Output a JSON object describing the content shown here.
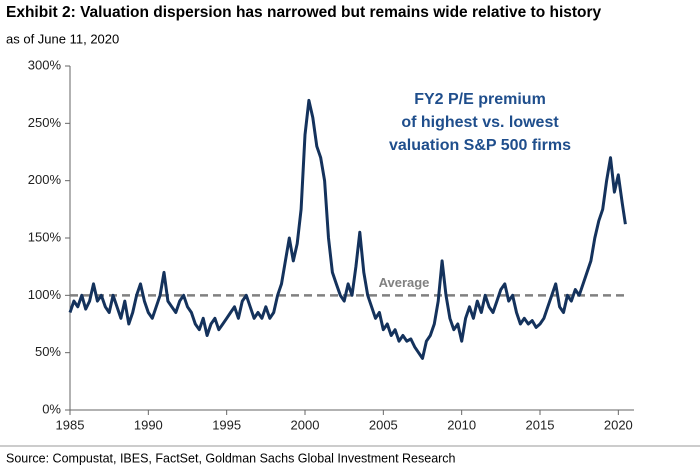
{
  "chart_data": {
    "type": "line",
    "title": "Exhibit 2: Valuation dispersion has narrowed but remains wide relative to history",
    "subtitle": "as of June 11, 2020",
    "source": "Source: Compustat, IBES, FactSet, Goldman Sachs Global Investment Research",
    "annotation": [
      "FY2 P/E premium",
      "of highest vs. lowest",
      "valuation S&P 500 firms"
    ],
    "reference_line": {
      "value": 100,
      "label": "Average",
      "color": "#808080"
    },
    "xlim": [
      1985,
      2021
    ],
    "xticks": [
      1985,
      1990,
      1995,
      2000,
      2005,
      2010,
      2015,
      2020
    ],
    "ylim": [
      0,
      300
    ],
    "yticks": [
      {
        "value": 0,
        "label": "0%"
      },
      {
        "value": 50,
        "label": "50%"
      },
      {
        "value": 100,
        "label": "100%"
      },
      {
        "value": 150,
        "label": "150%"
      },
      {
        "value": 200,
        "label": "200%"
      },
      {
        "value": 250,
        "label": "250%"
      },
      {
        "value": 300,
        "label": "300%"
      }
    ],
    "x": [
      1985,
      1985.25,
      1985.5,
      1985.75,
      1986,
      1986.25,
      1986.5,
      1986.75,
      1987,
      1987.25,
      1987.5,
      1987.75,
      1988,
      1988.25,
      1988.5,
      1988.75,
      1989,
      1989.25,
      1989.5,
      1989.75,
      1990,
      1990.25,
      1990.5,
      1990.75,
      1991,
      1991.25,
      1991.5,
      1991.75,
      1992,
      1992.25,
      1992.5,
      1992.75,
      1993,
      1993.25,
      1993.5,
      1993.75,
      1994,
      1994.25,
      1994.5,
      1994.75,
      1995,
      1995.25,
      1995.5,
      1995.75,
      1996,
      1996.25,
      1996.5,
      1996.75,
      1997,
      1997.25,
      1997.5,
      1997.75,
      1998,
      1998.25,
      1998.5,
      1998.75,
      1999,
      1999.25,
      1999.5,
      1999.75,
      2000,
      2000.25,
      2000.5,
      2000.75,
      2001,
      2001.25,
      2001.5,
      2001.75,
      2002,
      2002.25,
      2002.5,
      2002.75,
      2003,
      2003.25,
      2003.5,
      2003.75,
      2004,
      2004.25,
      2004.5,
      2004.75,
      2005,
      2005.25,
      2005.5,
      2005.75,
      2006,
      2006.25,
      2006.5,
      2006.75,
      2007,
      2007.25,
      2007.5,
      2007.75,
      2008,
      2008.25,
      2008.5,
      2008.75,
      2009,
      2009.25,
      2009.5,
      2009.75,
      2010,
      2010.25,
      2010.5,
      2010.75,
      2011,
      2011.25,
      2011.5,
      2011.75,
      2012,
      2012.25,
      2012.5,
      2012.75,
      2013,
      2013.25,
      2013.5,
      2013.75,
      2014,
      2014.25,
      2014.5,
      2014.75,
      2015,
      2015.25,
      2015.5,
      2015.75,
      2016,
      2016.25,
      2016.5,
      2016.75,
      2017,
      2017.25,
      2017.5,
      2017.75,
      2018,
      2018.25,
      2018.5,
      2018.75,
      2019,
      2019.25,
      2019.5,
      2019.75,
      2020,
      2020.25,
      2020.45
    ],
    "series": [
      {
        "color": "#14325c",
        "values": [
          85,
          95,
          90,
          100,
          88,
          95,
          110,
          95,
          100,
          90,
          85,
          100,
          90,
          80,
          95,
          75,
          85,
          100,
          110,
          95,
          85,
          80,
          90,
          100,
          120,
          95,
          90,
          85,
          95,
          100,
          90,
          85,
          75,
          70,
          80,
          65,
          75,
          80,
          70,
          75,
          80,
          85,
          90,
          80,
          95,
          100,
          90,
          80,
          85,
          80,
          90,
          80,
          85,
          100,
          110,
          130,
          150,
          130,
          145,
          175,
          240,
          270,
          255,
          230,
          220,
          200,
          150,
          120,
          110,
          100,
          95,
          110,
          100,
          125,
          155,
          120,
          100,
          90,
          80,
          85,
          70,
          75,
          65,
          70,
          60,
          65,
          60,
          62,
          55,
          50,
          45,
          60,
          65,
          75,
          95,
          130,
          100,
          80,
          70,
          75,
          60,
          80,
          90,
          80,
          95,
          85,
          100,
          90,
          85,
          95,
          105,
          110,
          95,
          100,
          85,
          75,
          80,
          75,
          78,
          72,
          75,
          80,
          90,
          100,
          110,
          90,
          85,
          100,
          95,
          105,
          100,
          110,
          120,
          130,
          150,
          165,
          175,
          200,
          220,
          190,
          205,
          180,
          162
        ]
      }
    ]
  }
}
